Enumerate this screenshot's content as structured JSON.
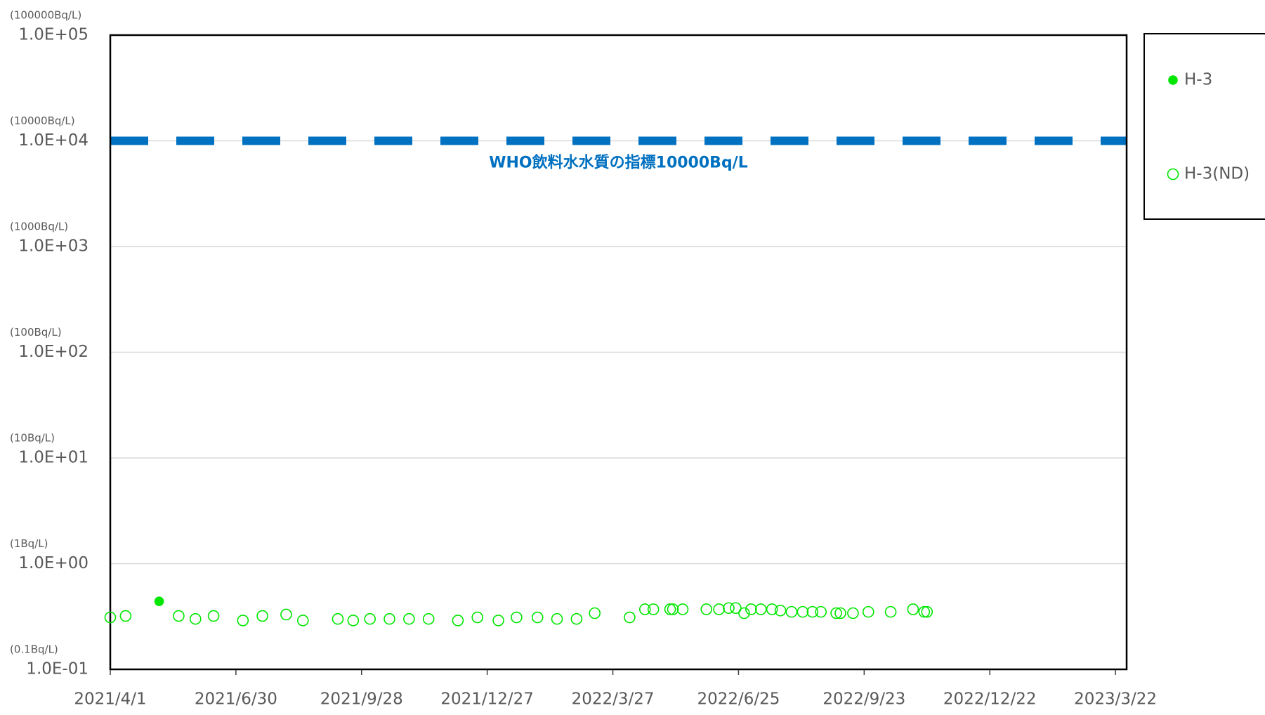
{
  "chart_data": {
    "type": "scatter",
    "log_y": true,
    "grid": true,
    "xlim": [
      "2021/4/1",
      "2023/3/30"
    ],
    "xticks": [
      "2021/4/1",
      "2021/6/30",
      "2021/9/28",
      "2021/12/27",
      "2022/3/27",
      "2022/6/25",
      "2022/9/23",
      "2022/12/22",
      "2023/3/22"
    ],
    "ylim": [
      0.1,
      100000
    ],
    "yticks": [
      {
        "value": 0.1,
        "label": "1.0E-01"
      },
      {
        "value": 1,
        "label": "1.0E+00"
      },
      {
        "value": 10,
        "label": "1.0E+01"
      },
      {
        "value": 100,
        "label": "1.0E+02"
      },
      {
        "value": 1000,
        "label": "1.0E+03"
      },
      {
        "value": 10000,
        "label": "1.0E+04"
      },
      {
        "value": 100000,
        "label": "1.0E+05"
      }
    ],
    "ytick_notes": [
      "(0.1Bq/L)",
      "(1Bq/L)",
      "(10Bq/L)",
      "(100Bq/L)",
      "(1000Bq/L)",
      "(10000Bq/L)",
      "(100000Bq/L)"
    ],
    "reference_line": {
      "value": 10000,
      "label": "WHO飲料水水質の指標10000Bq/L",
      "color": "#0070c0"
    },
    "legend": "right",
    "series": [
      {
        "name": "H-3",
        "color": "#00e600",
        "marker": "filled",
        "x": [
          "2021/5/6"
        ],
        "values": [
          0.44
        ]
      },
      {
        "name": "H-3(ND)",
        "color": "#00e600",
        "marker": "open",
        "x": [
          "2021/4/1",
          "2021/4/12",
          "2021/5/20",
          "2021/6/1",
          "2021/6/14",
          "2021/7/5",
          "2021/7/19",
          "2021/8/5",
          "2021/8/17",
          "2021/9/11",
          "2021/9/22",
          "2021/10/4",
          "2021/10/18",
          "2021/11/1",
          "2021/11/15",
          "2021/12/6",
          "2021/12/20",
          "2022/1/4",
          "2022/1/17",
          "2022/2/1",
          "2022/2/15",
          "2022/3/1",
          "2022/3/14",
          "2022/4/8",
          "2022/4/19",
          "2022/4/25",
          "2022/5/7",
          "2022/5/9",
          "2022/5/16",
          "2022/6/2",
          "2022/6/11",
          "2022/6/18",
          "2022/6/23",
          "2022/6/29",
          "2022/7/4",
          "2022/7/11",
          "2022/7/19",
          "2022/7/25",
          "2022/8/2",
          "2022/8/10",
          "2022/8/17",
          "2022/8/23",
          "2022/9/3",
          "2022/9/6",
          "2022/9/15",
          "2022/9/26",
          "2022/10/12",
          "2022/10/28",
          "2022/11/5",
          "2022/11/7"
        ],
        "values": [
          0.31,
          0.32,
          0.32,
          0.3,
          0.32,
          0.29,
          0.32,
          0.33,
          0.29,
          0.3,
          0.29,
          0.3,
          0.3,
          0.3,
          0.3,
          0.29,
          0.31,
          0.29,
          0.31,
          0.31,
          0.3,
          0.3,
          0.34,
          0.31,
          0.37,
          0.37,
          0.37,
          0.37,
          0.37,
          0.37,
          0.37,
          0.38,
          0.38,
          0.34,
          0.37,
          0.37,
          0.37,
          0.36,
          0.35,
          0.35,
          0.35,
          0.35,
          0.34,
          0.34,
          0.34,
          0.35,
          0.35,
          0.37,
          0.35,
          0.35
        ]
      }
    ]
  }
}
